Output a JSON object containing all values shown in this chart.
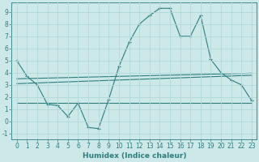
{
  "xlabel": "Humidex (Indice chaleur)",
  "x": [
    0,
    1,
    2,
    3,
    4,
    5,
    6,
    7,
    8,
    9,
    10,
    11,
    12,
    13,
    14,
    15,
    16,
    17,
    18,
    19,
    20,
    21,
    22,
    23
  ],
  "line1": [
    5.0,
    3.7,
    3.0,
    1.4,
    1.3,
    0.4,
    1.5,
    -0.5,
    -0.6,
    1.8,
    4.5,
    6.5,
    8.0,
    8.7,
    9.3,
    9.3,
    7.0,
    7.0,
    8.7,
    5.1,
    4.0,
    3.4,
    3.0,
    1.7
  ],
  "line2": [
    3.5,
    3.52,
    3.54,
    3.56,
    3.58,
    3.6,
    3.62,
    3.64,
    3.66,
    3.68,
    3.7,
    3.72,
    3.74,
    3.76,
    3.78,
    3.8,
    3.82,
    3.84,
    3.86,
    3.88,
    3.9,
    3.92,
    3.94,
    3.96
  ],
  "line3": [
    3.1,
    3.13,
    3.16,
    3.19,
    3.22,
    3.25,
    3.28,
    3.31,
    3.34,
    3.37,
    3.4,
    3.43,
    3.46,
    3.49,
    3.52,
    3.55,
    3.58,
    3.61,
    3.64,
    3.67,
    3.7,
    3.73,
    3.76,
    3.79
  ],
  "line4": [
    1.5,
    1.5,
    1.5,
    1.5,
    1.5,
    1.5,
    1.5,
    1.5,
    1.5,
    1.5,
    1.5,
    1.5,
    1.5,
    1.5,
    1.5,
    1.5,
    1.5,
    1.5,
    1.5,
    1.5,
    1.5,
    1.5,
    1.5,
    1.5
  ],
  "color": "#2d7d7d",
  "bg_color": "#cce8e8",
  "grid_color": "#b0d8d8",
  "ylim": [
    -1.5,
    9.8
  ],
  "yticks": [
    -1,
    0,
    1,
    2,
    3,
    4,
    5,
    6,
    7,
    8,
    9
  ],
  "xticks": [
    0,
    1,
    2,
    3,
    4,
    5,
    6,
    7,
    8,
    9,
    10,
    11,
    12,
    13,
    14,
    15,
    16,
    17,
    18,
    19,
    20,
    21,
    22,
    23
  ],
  "xlabel_fontsize": 6.5,
  "tick_fontsize": 5.5
}
